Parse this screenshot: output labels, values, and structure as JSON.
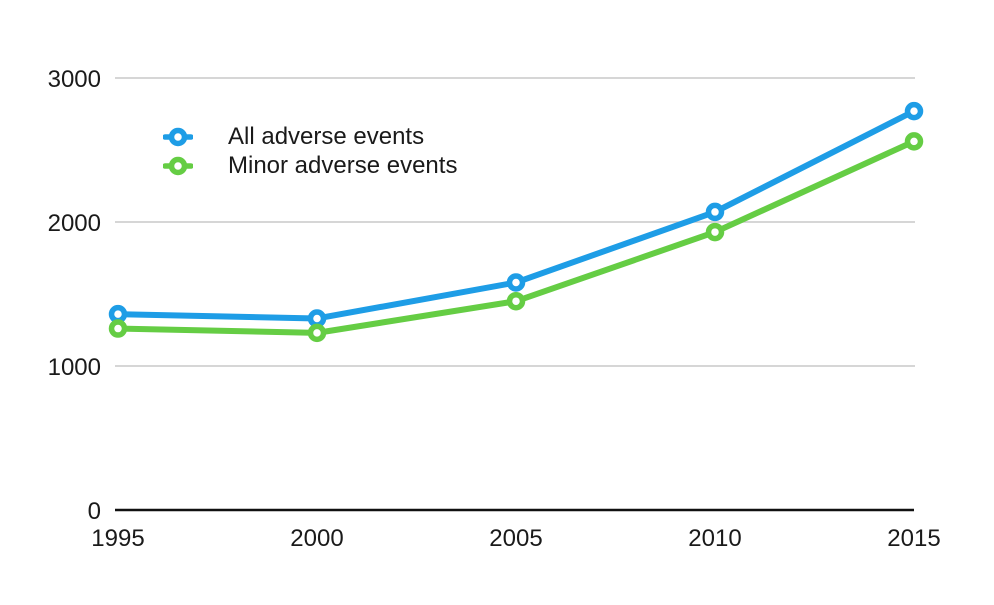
{
  "chart_data": {
    "type": "line",
    "x": [
      1995,
      2000,
      2005,
      2010,
      2015
    ],
    "x_tick_labels": [
      "1995",
      "2000",
      "2005",
      "2010",
      "2015"
    ],
    "series": [
      {
        "name": "All adverse events",
        "color": "#1e9de6",
        "values": [
          1360,
          1330,
          1580,
          2070,
          2770
        ]
      },
      {
        "name": "Minor adverse events",
        "color": "#65cd44",
        "values": [
          1260,
          1230,
          1450,
          1930,
          2560
        ]
      }
    ],
    "ylim": [
      0,
      3000
    ],
    "yticks": [
      0,
      1000,
      2000,
      3000
    ],
    "y_tick_labels": [
      "0",
      "1000",
      "2000",
      "3000"
    ],
    "grid": "horizontal",
    "legend_position": "inside-top-left",
    "marker": "open-circle"
  },
  "style": {
    "background": "#ffffff",
    "gridline_color": "#c8c8c8",
    "axis_color": "#111111",
    "text_color": "#1a1a1a",
    "marker_fill": "#ffffff",
    "line_width": 6,
    "tick_font_size": 24,
    "legend_font_size": 24
  }
}
